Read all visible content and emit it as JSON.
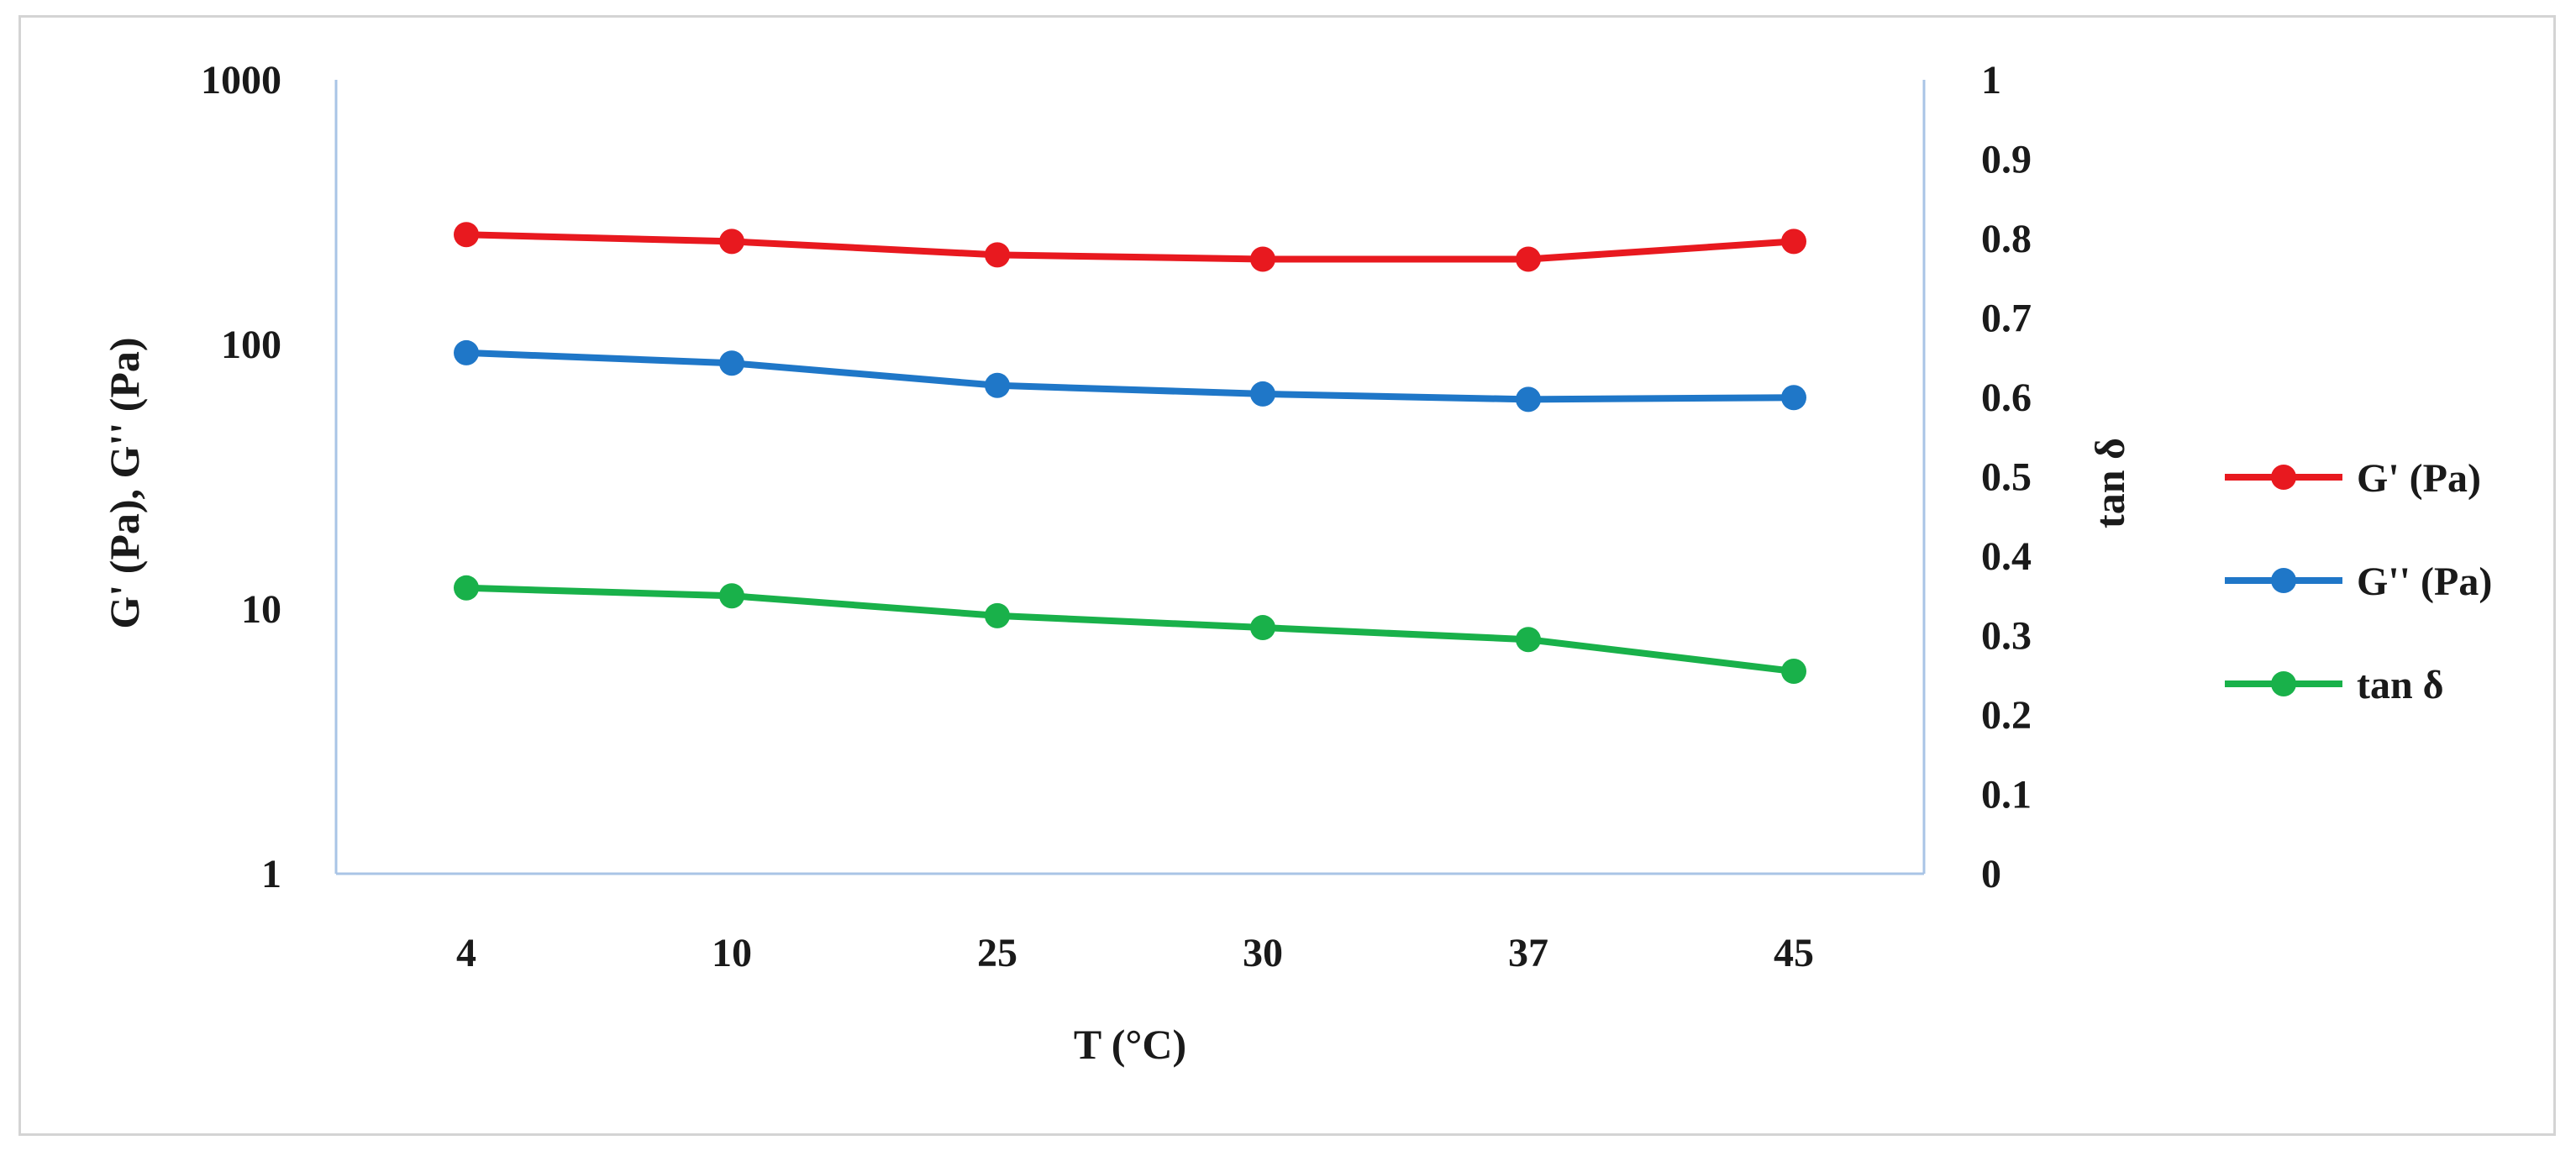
{
  "chart_data": {
    "type": "line",
    "categories": [
      "4",
      "10",
      "25",
      "30",
      "37",
      "45"
    ],
    "xlabel": "T (°C)",
    "ylabel": "G' (Pa), G'' (Pa)",
    "y2label": "tan δ",
    "y_scale": "log",
    "ylim": [
      1,
      1000
    ],
    "y_ticks": [
      "1",
      "10",
      "100",
      "1000"
    ],
    "y2lim": [
      0,
      1
    ],
    "y2_ticks": [
      "0",
      "0.1",
      "0.2",
      "0.3",
      "0.4",
      "0.5",
      "0.6",
      "0.7",
      "0.8",
      "0.9",
      "1"
    ],
    "grid": false,
    "legend_position": "right",
    "series": [
      {
        "name": "G' (Pa)",
        "axis": "left",
        "color": "#e8191f",
        "values": [
          260,
          245,
          218,
          210,
          210,
          245
        ]
      },
      {
        "name": "G'' (Pa)",
        "axis": "left",
        "color": "#1f77c8",
        "values": [
          93,
          85,
          70,
          65,
          62,
          63
        ]
      },
      {
        "name": "tan δ",
        "axis": "right",
        "color": "#19b14a",
        "values": [
          0.36,
          0.35,
          0.325,
          0.31,
          0.295,
          0.255
        ]
      }
    ]
  }
}
